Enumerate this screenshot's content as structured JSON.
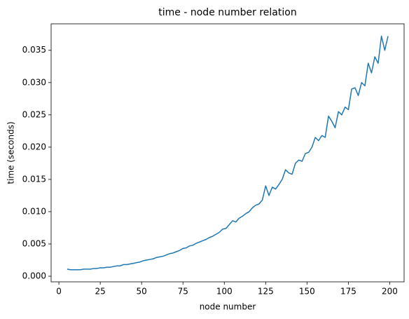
{
  "chart_data": {
    "type": "line",
    "title": "time - node number relation",
    "xlabel": "node number",
    "ylabel": "time (seconds)",
    "x": [
      5,
      7,
      9,
      11,
      13,
      15,
      17,
      19,
      21,
      23,
      25,
      27,
      29,
      31,
      33,
      35,
      37,
      39,
      41,
      43,
      45,
      47,
      49,
      51,
      53,
      55,
      57,
      59,
      61,
      63,
      65,
      67,
      69,
      71,
      73,
      75,
      77,
      79,
      81,
      83,
      85,
      87,
      89,
      91,
      93,
      95,
      97,
      99,
      101,
      103,
      105,
      107,
      109,
      111,
      113,
      115,
      117,
      119,
      121,
      123,
      125,
      127,
      129,
      131,
      133,
      135,
      137,
      139,
      141,
      143,
      145,
      147,
      149,
      151,
      153,
      155,
      157,
      159,
      161,
      163,
      165,
      167,
      169,
      171,
      173,
      175,
      177,
      179,
      181,
      183,
      185,
      187,
      189,
      191,
      193,
      195,
      197,
      199
    ],
    "series": [
      {
        "name": "time",
        "color": "#1f77b4",
        "values": [
          0.0011,
          0.001,
          0.001,
          0.001,
          0.001,
          0.0011,
          0.0011,
          0.0011,
          0.0012,
          0.0012,
          0.0013,
          0.0013,
          0.0014,
          0.0014,
          0.0015,
          0.0016,
          0.0016,
          0.0018,
          0.0018,
          0.0019,
          0.002,
          0.0021,
          0.0022,
          0.0024,
          0.0025,
          0.0026,
          0.0027,
          0.0029,
          0.003,
          0.0031,
          0.0033,
          0.0035,
          0.0036,
          0.0038,
          0.004,
          0.0043,
          0.0044,
          0.0047,
          0.0048,
          0.0051,
          0.0053,
          0.0055,
          0.0057,
          0.006,
          0.0062,
          0.0065,
          0.0068,
          0.0073,
          0.0074,
          0.008,
          0.0086,
          0.0084,
          0.009,
          0.0093,
          0.0097,
          0.01,
          0.0106,
          0.011,
          0.0112,
          0.0118,
          0.014,
          0.0125,
          0.0138,
          0.0135,
          0.0142,
          0.015,
          0.0165,
          0.016,
          0.0158,
          0.0175,
          0.018,
          0.0178,
          0.019,
          0.0192,
          0.02,
          0.0215,
          0.021,
          0.0218,
          0.0215,
          0.0248,
          0.024,
          0.023,
          0.0255,
          0.025,
          0.0262,
          0.0258,
          0.029,
          0.0292,
          0.028,
          0.03,
          0.0295,
          0.033,
          0.0315,
          0.034,
          0.033,
          0.0372,
          0.035,
          0.0372
        ]
      }
    ],
    "xlim": [
      -4.7,
      208.7
    ],
    "xticks": [
      0,
      25,
      50,
      75,
      100,
      125,
      150,
      175,
      200
    ],
    "ylim": [
      -0.00087,
      0.0391
    ],
    "yticks": [
      {
        "value": 0,
        "label": "0.000"
      },
      {
        "value": 0.005,
        "label": "0.005"
      },
      {
        "value": 0.01,
        "label": "0.010"
      },
      {
        "value": 0.015,
        "label": "0.015"
      },
      {
        "value": 0.02,
        "label": "0.020"
      },
      {
        "value": 0.025,
        "label": "0.025"
      },
      {
        "value": 0.03,
        "label": "0.030"
      },
      {
        "value": 0.035,
        "label": "0.035"
      }
    ],
    "grid": false
  }
}
